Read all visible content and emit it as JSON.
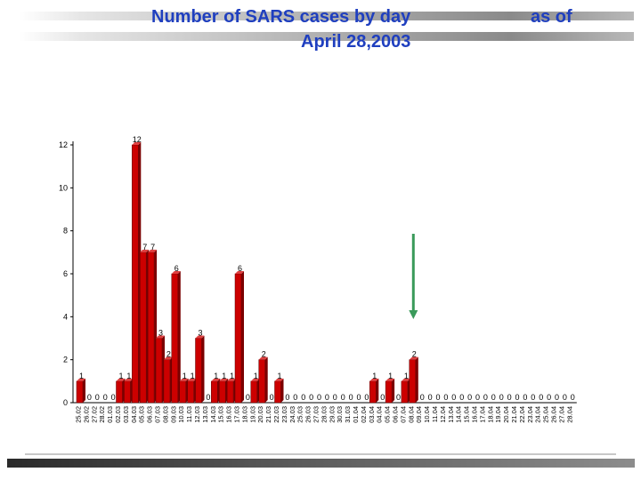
{
  "title": {
    "line1": "Number of SARS cases by day",
    "line1_suffix": "as of",
    "line2": "April 28,2003"
  },
  "colors": {
    "title": "#1f3fbf",
    "bar_front": "#cc0000",
    "bar_side": "#7a0000",
    "arrow": "#3a9a5a"
  },
  "chart_data": {
    "type": "bar",
    "categories": [
      "25.02",
      "26.02",
      "27.02",
      "28.02",
      "01.03",
      "02.03",
      "03.03",
      "04.03",
      "05.03",
      "06.03",
      "07.03",
      "08.03",
      "09.03",
      "10.03",
      "11.03",
      "12.03",
      "13.03",
      "14.03",
      "15.03",
      "16.03",
      "17.03",
      "18.03",
      "19.03",
      "20.03",
      "21.03",
      "22.03",
      "23.03",
      "24.03",
      "25.03",
      "26.03",
      "27.03",
      "28.03",
      "29.03",
      "30.03",
      "31.03",
      "01.04",
      "02.04",
      "03.04",
      "04.04",
      "05.04",
      "06.04",
      "07.04",
      "08.04",
      "09.04",
      "10.04",
      "11.04",
      "12.04",
      "13.04",
      "14.04",
      "15.04",
      "16.04",
      "17.04",
      "18.04",
      "19.04",
      "20.04",
      "21.04",
      "22.04",
      "23.04",
      "24.04",
      "25.04",
      "26.04",
      "27.04",
      "28.04"
    ],
    "values": [
      1,
      0,
      0,
      0,
      0,
      1,
      1,
      12,
      7,
      7,
      3,
      2,
      6,
      1,
      1,
      3,
      0,
      1,
      1,
      1,
      6,
      0,
      1,
      2,
      0,
      1,
      0,
      0,
      0,
      0,
      0,
      0,
      0,
      0,
      0,
      0,
      0,
      1,
      0,
      1,
      0,
      1,
      2,
      0,
      0,
      0,
      0,
      0,
      0,
      0,
      0,
      0,
      0,
      0,
      0,
      0,
      0,
      0,
      0,
      0,
      0,
      0,
      0
    ],
    "ylim": [
      0,
      12
    ],
    "yticks": [
      0,
      2,
      4,
      6,
      8,
      10,
      12
    ],
    "grid": false,
    "annotation": "arrow pointing down at 08.04"
  }
}
